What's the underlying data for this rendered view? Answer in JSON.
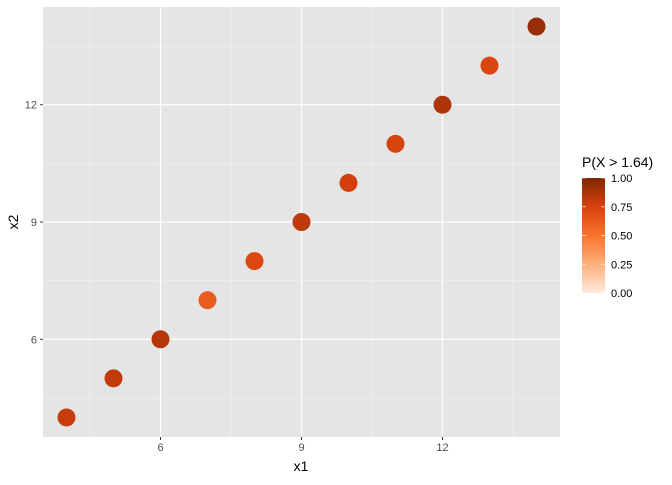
{
  "chart_data": {
    "type": "scatter",
    "xlabel": "x1",
    "ylabel": "x2",
    "xlim": [
      3.5,
      14.5
    ],
    "ylim": [
      3.5,
      14.5
    ],
    "x_ticks": [
      6,
      9,
      12
    ],
    "y_ticks": [
      6,
      9,
      12
    ],
    "grid": true,
    "points": [
      {
        "x": 4,
        "y": 4,
        "p": 0.8
      },
      {
        "x": 5,
        "y": 5,
        "p": 0.81
      },
      {
        "x": 6,
        "y": 6,
        "p": 0.85
      },
      {
        "x": 7,
        "y": 7,
        "p": 0.62
      },
      {
        "x": 8,
        "y": 8,
        "p": 0.72
      },
      {
        "x": 9,
        "y": 9,
        "p": 0.82
      },
      {
        "x": 10,
        "y": 10,
        "p": 0.76
      },
      {
        "x": 11,
        "y": 11,
        "p": 0.74
      },
      {
        "x": 12,
        "y": 12,
        "p": 0.87
      },
      {
        "x": 13,
        "y": 13,
        "p": 0.73
      },
      {
        "x": 14,
        "y": 14,
        "p": 0.93
      }
    ],
    "legend": {
      "title": "P(X > 1.64)",
      "placement": "right",
      "ticks": [
        "0.00",
        "0.25",
        "0.50",
        "0.75",
        "1.00"
      ],
      "colors": [
        "#feebdc",
        "#fdb07a",
        "#f8742f",
        "#d8410d",
        "#7f2704"
      ]
    }
  }
}
